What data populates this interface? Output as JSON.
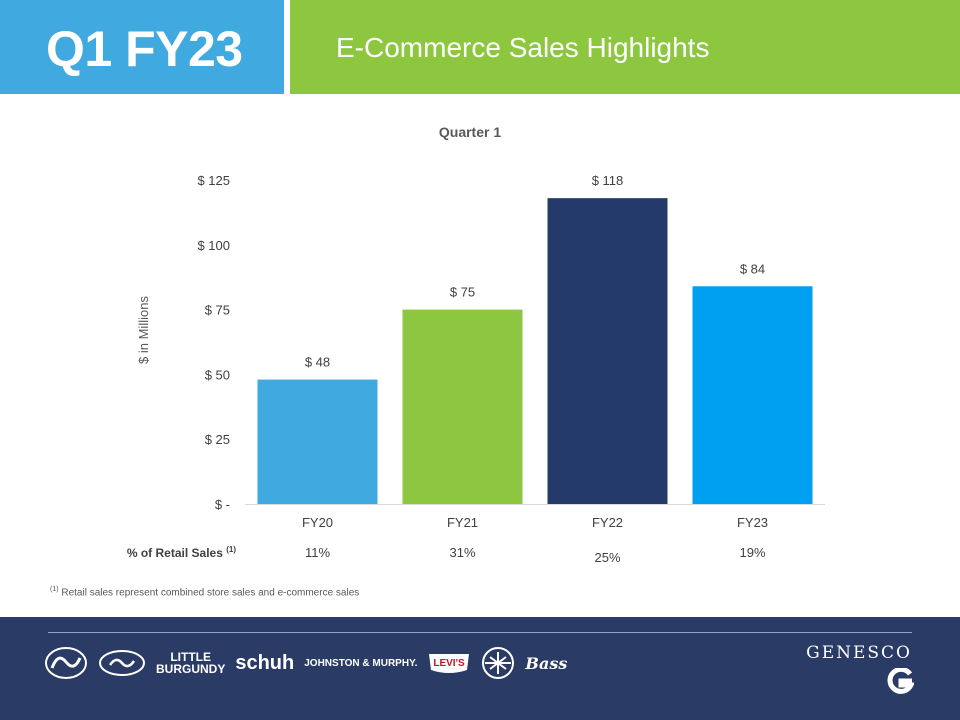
{
  "header": {
    "quarter_label": "Q1 FY23",
    "title": "E-Commerce Sales Highlights",
    "colors": {
      "left": "#3fa9e0",
      "right": "#8dc63f"
    }
  },
  "chart_data": {
    "type": "bar",
    "title": "Quarter 1",
    "ylabel": "$ in Millions",
    "xlabel": "",
    "categories": [
      "FY20",
      "FY21",
      "FY22",
      "FY23"
    ],
    "values": [
      48,
      75,
      118,
      84
    ],
    "data_labels": [
      "$ 48",
      "$ 75",
      "$ 118",
      "$ 84"
    ],
    "bar_colors": [
      "#3fa9e0",
      "#8dc63f",
      "#243a6b",
      "#00a0f0"
    ],
    "ylim": [
      0,
      125
    ],
    "yticks": [
      0,
      25,
      50,
      75,
      100,
      125
    ],
    "ytick_labels": [
      "$ -",
      "$ 25",
      "$ 50",
      "$ 75",
      "$ 100",
      "$ 125"
    ],
    "grid": false,
    "legend": "none",
    "row_label": "% of Retail Sales",
    "row_label_sup": "(1)",
    "row_values": [
      "11%",
      "31%",
      "25%",
      "19%"
    ]
  },
  "footnote": {
    "marker": "(1)",
    "text": "Retail sales represent combined store sales and e-commerce sales"
  },
  "footer": {
    "brands": {
      "little_burgundy_line1": "LITTLE",
      "little_burgundy_line2": "BURGUNDY",
      "schuh": "schuh",
      "johnston_murphy": "JOHNSTON & MURPHY.",
      "levis": "Levi's",
      "bass": "Bass"
    },
    "company": "GENESCO",
    "colors": {
      "background": "#2a3b66"
    }
  }
}
